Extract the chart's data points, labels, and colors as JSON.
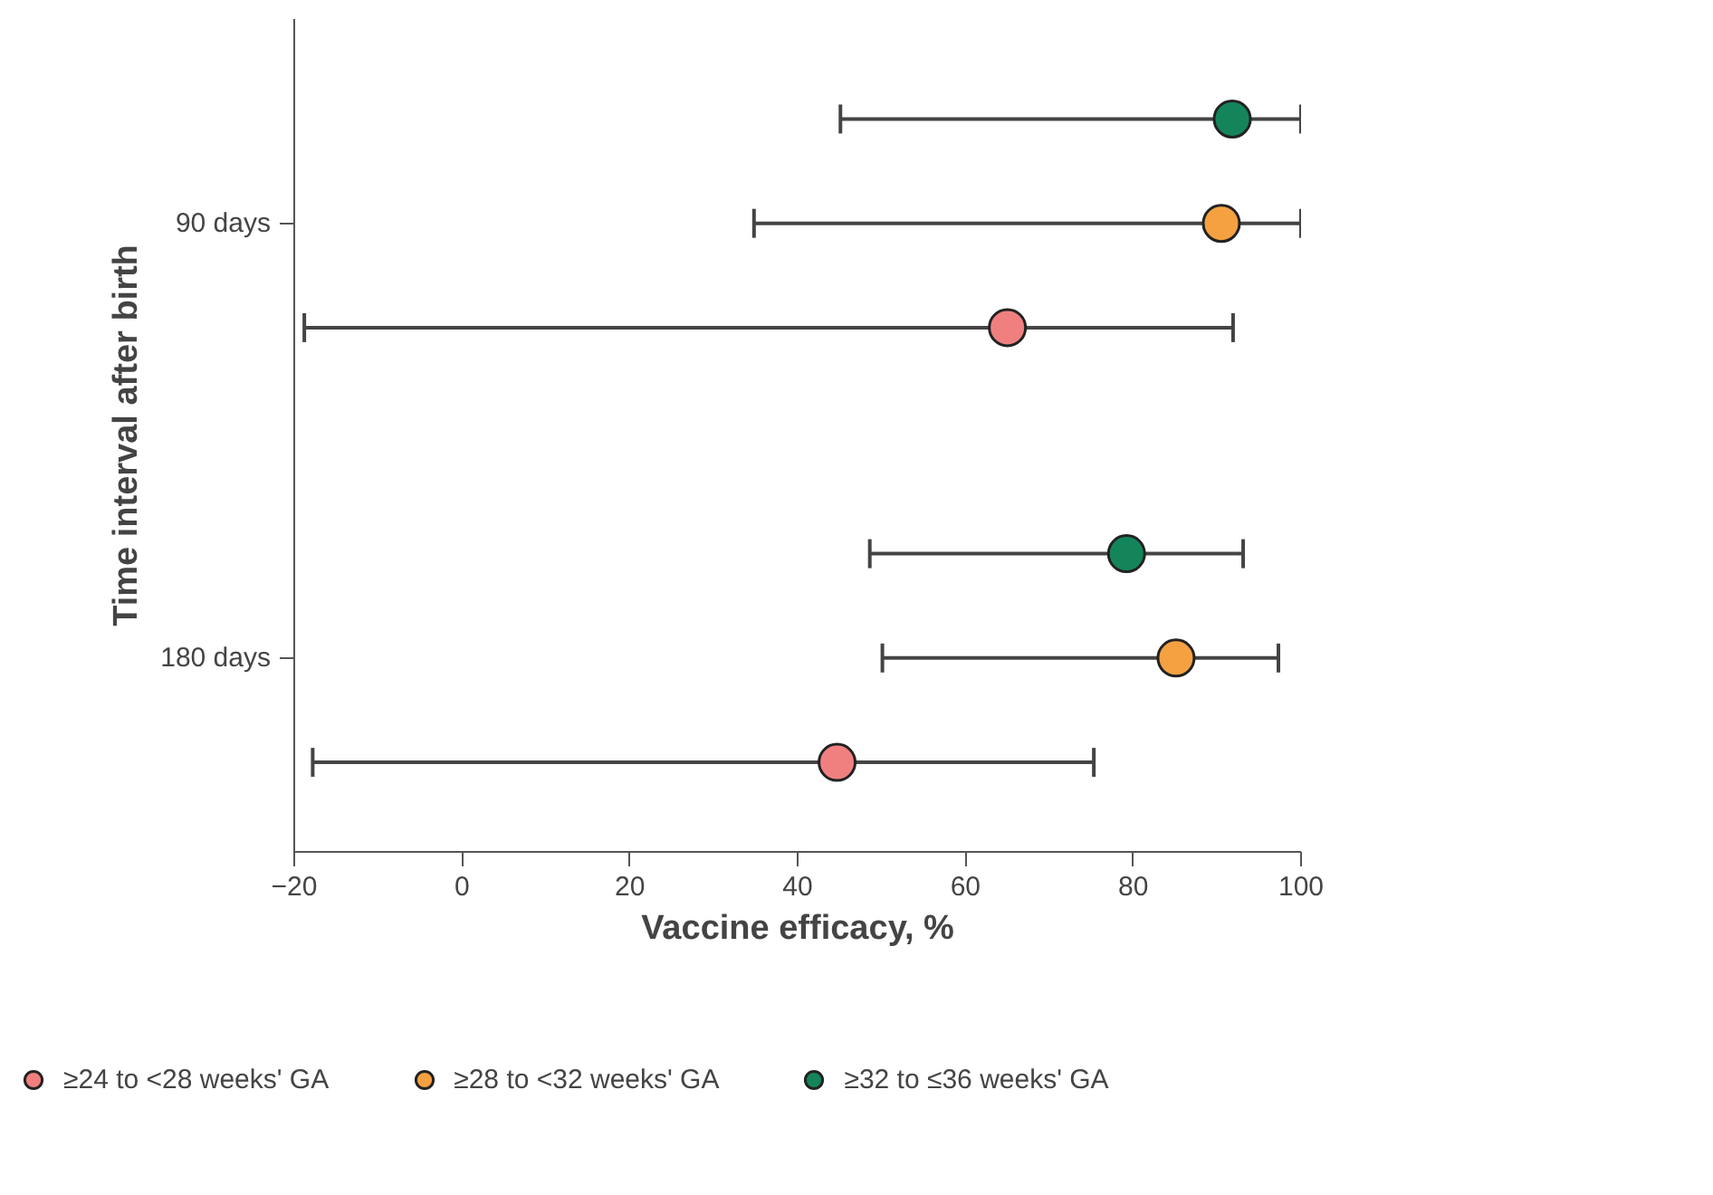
{
  "chart_data": {
    "type": "scatter",
    "orientation": "horizontal",
    "xlabel": "Vaccine efficacy, %",
    "ylabel": "Time interval after birth",
    "categories": [
      "90 days",
      "180 days"
    ],
    "xlim": [
      -20,
      100
    ],
    "xticks": [
      -20,
      0,
      20,
      40,
      60,
      80,
      100
    ],
    "grid": false,
    "legend": "bottom",
    "marker": "circle",
    "series": [
      {
        "name": "≥24 to <28 weeks' GA",
        "color": "#f08080",
        "values": [
          65,
          44.7
        ],
        "errors": [
          [
            -18.8,
            91.9
          ],
          [
            -17.8,
            75.3
          ]
        ]
      },
      {
        "name": "≥28 to <32 weeks' GA",
        "color": "#f5a142",
        "values": [
          90.5,
          85.1
        ],
        "errors": [
          [
            34.8,
            100
          ],
          [
            50.1,
            97.3
          ]
        ]
      },
      {
        "name": "≥32 to ≤36 weeks' GA",
        "color": "#14855a",
        "values": [
          91.8,
          79.2
        ],
        "errors": [
          [
            45.1,
            100
          ],
          [
            48.6,
            93.1
          ]
        ]
      }
    ]
  }
}
